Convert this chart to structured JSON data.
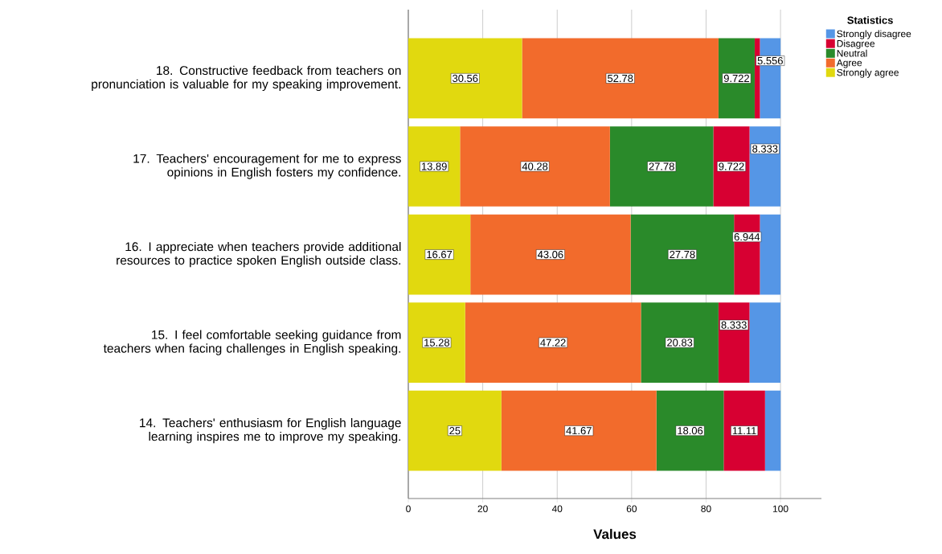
{
  "chart_data": {
    "type": "bar",
    "orientation": "horizontal",
    "stacked": true,
    "xlabel": "Values",
    "legend_title": "Statistics",
    "legend": "top right",
    "grid": "x",
    "categories": [
      "18. Constructive feedback from teachers on pronunciation is valuable for my speaking improvement.",
      "17.  Teachers' encouragement for me to express opinions in English fosters my confidence.",
      "16. I appreciate when teachers provide additional resources to practice spoken English outside class.",
      "15. I feel comfortable seeking guidance from teachers when facing challenges in English speaking.",
      "14. Teachers' enthusiasm for English language learning inspires me to improve my speaking."
    ],
    "xlim": [
      0,
      111
    ],
    "xticks": [
      0,
      20,
      40,
      60,
      80,
      100
    ],
    "series": [
      {
        "name": "Strongly agree",
        "color": "#e1d90f",
        "values": [
          30.56,
          13.89,
          16.67,
          15.28,
          25
        ],
        "value_labels": [
          "30.56",
          "13.89",
          "16.67",
          "15.28",
          "25"
        ]
      },
      {
        "name": "Agree",
        "color": "#f26b2c",
        "values": [
          52.78,
          40.28,
          43.06,
          47.22,
          41.67
        ],
        "value_labels": [
          "52.78",
          "40.28",
          "43.06",
          "47.22",
          "41.67"
        ]
      },
      {
        "name": "Neutral",
        "color": "#2a8a2a",
        "values": [
          9.722,
          27.78,
          27.78,
          20.83,
          18.06
        ],
        "value_labels": [
          "9.722",
          "27.78",
          "27.78",
          "20.83",
          "18.06"
        ]
      },
      {
        "name": "Disagree",
        "color": "#d70032",
        "values": [
          1.4,
          9.722,
          6.944,
          8.333,
          11.11
        ],
        "value_labels": [
          null,
          "9.722",
          "6.944",
          "8.333",
          "11.11"
        ]
      },
      {
        "name": "Strongly disagree",
        "color": "#5596e6",
        "values": [
          5.556,
          8.333,
          5.556,
          8.333,
          4.2
        ],
        "value_labels": [
          "5.556",
          "8.333",
          null,
          null,
          null
        ]
      }
    ]
  }
}
